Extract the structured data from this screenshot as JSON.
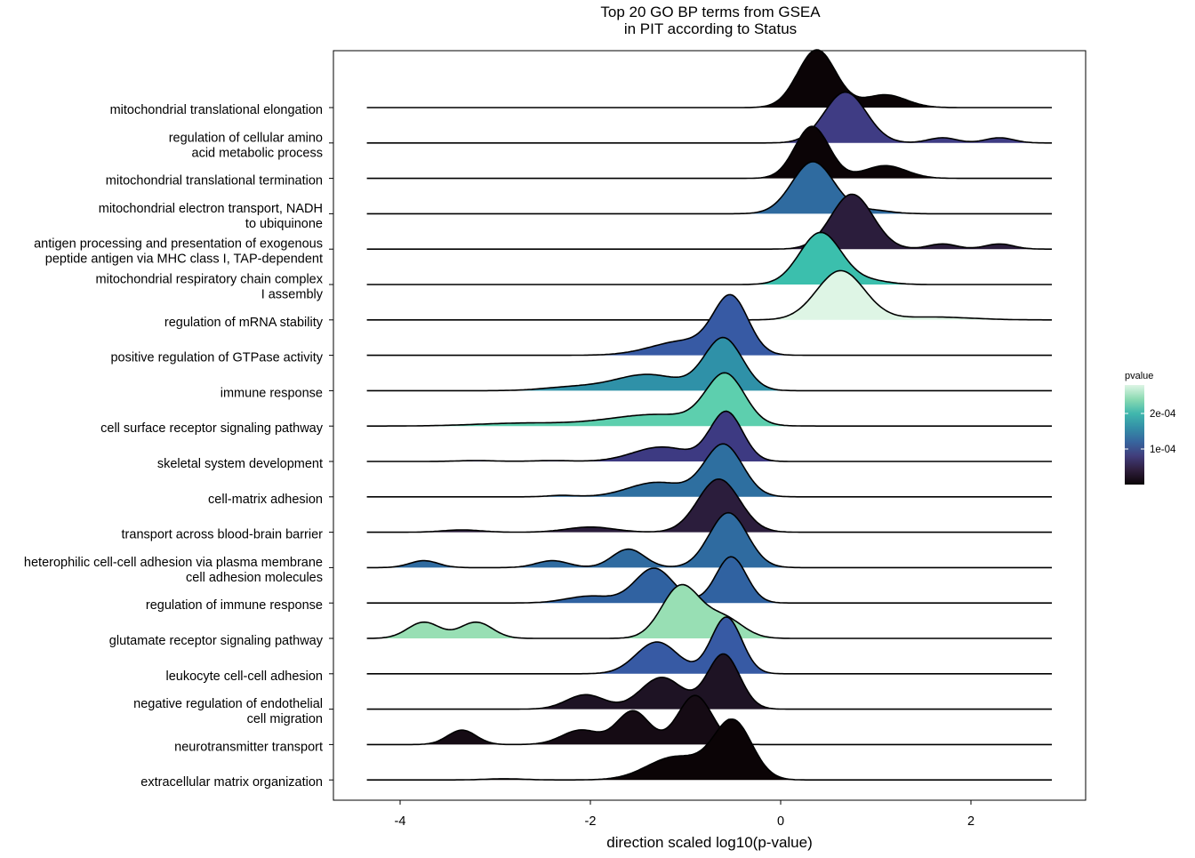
{
  "chart_data": {
    "type": "ridgeline",
    "title_line1": "Top 20 GO BP terms from GSEA",
    "title_line2": "in PIT according to Status",
    "xlabel": "direction scaled log10(p-value)",
    "ylabel": "",
    "xlim": [
      -4.6,
      3.4
    ],
    "x_ticks": [
      {
        "value": -4,
        "label": "-4"
      },
      {
        "value": -2,
        "label": "-2"
      },
      {
        "value": 0,
        "label": "0"
      },
      {
        "value": 2,
        "label": "2"
      }
    ],
    "grid": false,
    "legend": {
      "title": "pvalue",
      "position": "right",
      "range": [
        0,
        0.00028
      ],
      "ticks": [
        {
          "value": 0.0001,
          "label": "1e-04"
        },
        {
          "value": 0.0002,
          "label": "2e-04"
        }
      ],
      "colormap": [
        "#0b0406",
        "#2e1e3c",
        "#413d7b",
        "#37659e",
        "#348fa7",
        "#40b7ad",
        "#8bdab2",
        "#def5e5"
      ]
    },
    "series": [
      {
        "label": "mitochondrial translational elongation",
        "pvalue": 5e-06,
        "fill": "#0b0406",
        "x_range": [
          -4.35,
          2.85
        ],
        "peaks": [
          [
            0.38,
            1.0,
            0.2
          ],
          [
            1.1,
            0.22,
            0.22
          ]
        ]
      },
      {
        "label": "regulation of cellular amino acid metabolic process",
        "pvalue": 0.000105,
        "fill": "#3f3c84",
        "x_range": [
          -4.35,
          2.85
        ],
        "peaks": [
          [
            0.68,
            0.88,
            0.22
          ],
          [
            1.7,
            0.09,
            0.15
          ],
          [
            2.3,
            0.09,
            0.15
          ]
        ]
      },
      {
        "label": "mitochondrial translational termination",
        "pvalue": 5e-06,
        "fill": "#0b0406",
        "x_range": [
          -4.35,
          2.85
        ],
        "peaks": [
          [
            0.33,
            0.9,
            0.18
          ],
          [
            1.1,
            0.22,
            0.22
          ]
        ]
      },
      {
        "label": "mitochondrial electron transport, NADH to ubiquinone",
        "pvalue": 0.000135,
        "fill": "#2f6ba0",
        "x_range": [
          -4.35,
          2.85
        ],
        "peaks": [
          [
            0.34,
            0.9,
            0.22
          ],
          [
            0.95,
            0.06,
            0.2
          ]
        ]
      },
      {
        "label": "antigen processing and presentation of exogenous peptide antigen via MHC class I, TAP-dependent",
        "pvalue": 4.5e-05,
        "fill": "#2b1d3c",
        "x_range": [
          -4.35,
          2.85
        ],
        "peaks": [
          [
            0.75,
            0.95,
            0.22
          ],
          [
            1.7,
            0.09,
            0.15
          ],
          [
            2.3,
            0.09,
            0.15
          ]
        ]
      },
      {
        "label": "mitochondrial respiratory chain complex I assembly",
        "pvalue": 0.00023,
        "fill": "#3bbfad",
        "x_range": [
          -4.35,
          2.85
        ],
        "peaks": [
          [
            0.42,
            0.9,
            0.22
          ],
          [
            0.95,
            0.06,
            0.2
          ]
        ]
      },
      {
        "label": "regulation of mRNA stability",
        "pvalue": 0.00028,
        "fill": "#def5e5",
        "x_range": [
          -4.35,
          2.85
        ],
        "peaks": [
          [
            0.63,
            0.85,
            0.25
          ],
          [
            1.6,
            0.05,
            0.4
          ]
        ]
      },
      {
        "label": "positive regulation of GTPase activity",
        "pvalue": 0.000115,
        "fill": "#375aa4",
        "x_range": [
          -4.35,
          2.85
        ],
        "peaks": [
          [
            -0.52,
            0.95,
            0.18
          ],
          [
            -1.0,
            0.25,
            0.35
          ]
        ]
      },
      {
        "label": "immune response",
        "pvalue": 0.00018,
        "fill": "#2f91a8",
        "x_range": [
          -4.35,
          2.85
        ],
        "peaks": [
          [
            -0.6,
            0.9,
            0.2
          ],
          [
            -1.4,
            0.28,
            0.35
          ],
          [
            -2.2,
            0.06,
            0.3
          ]
        ]
      },
      {
        "label": "cell surface receptor signaling pathway",
        "pvalue": 0.00024,
        "fill": "#5dcfae",
        "x_range": [
          -4.35,
          2.85
        ],
        "peaks": [
          [
            -0.58,
            0.85,
            0.2
          ],
          [
            -1.3,
            0.2,
            0.5
          ],
          [
            -2.7,
            0.05,
            0.5
          ]
        ]
      },
      {
        "label": "skeletal system development",
        "pvalue": 0.0001,
        "fill": "#3d3a82",
        "x_range": [
          -4.35,
          2.85
        ],
        "peaks": [
          [
            -0.57,
            0.85,
            0.17
          ],
          [
            -1.25,
            0.25,
            0.3
          ],
          [
            -2.4,
            0.015,
            0.2
          ],
          [
            -3.2,
            0.015,
            0.2
          ]
        ]
      },
      {
        "label": "cell-matrix adhesion",
        "pvalue": 0.00015,
        "fill": "#2e6fa0",
        "x_range": [
          -4.35,
          2.85
        ],
        "peaks": [
          [
            -0.6,
            0.9,
            0.2
          ],
          [
            -1.3,
            0.25,
            0.3
          ],
          [
            -2.3,
            0.025,
            0.15
          ]
        ]
      },
      {
        "label": "transport across blood-brain barrier",
        "pvalue": 4.5e-05,
        "fill": "#2b1d3c",
        "x_range": [
          -4.35,
          2.85
        ],
        "peaks": [
          [
            -0.65,
            0.92,
            0.22
          ],
          [
            -2.0,
            0.09,
            0.25
          ],
          [
            -3.35,
            0.04,
            0.2
          ]
        ]
      },
      {
        "label": "heterophilic cell-cell adhesion via plasma membrane cell adhesion molecules",
        "pvalue": 0.00014,
        "fill": "#2f6ba0",
        "x_range": [
          -4.35,
          2.85
        ],
        "peaks": [
          [
            -0.55,
            0.95,
            0.2
          ],
          [
            -1.6,
            0.32,
            0.17
          ],
          [
            -2.4,
            0.12,
            0.17
          ],
          [
            -3.75,
            0.12,
            0.15
          ]
        ]
      },
      {
        "label": "regulation of immune response",
        "pvalue": 0.000125,
        "fill": "#3062a1",
        "x_range": [
          -4.35,
          2.85
        ],
        "peaks": [
          [
            -0.52,
            0.8,
            0.16
          ],
          [
            -1.33,
            0.6,
            0.2
          ],
          [
            -2.0,
            0.12,
            0.25
          ]
        ]
      },
      {
        "label": "glutamate receptor signaling pathway",
        "pvalue": 0.000255,
        "fill": "#98dfb4",
        "x_range": [
          -4.35,
          2.85
        ],
        "peaks": [
          [
            -1.05,
            0.9,
            0.2
          ],
          [
            -0.6,
            0.35,
            0.2
          ],
          [
            -3.75,
            0.28,
            0.17
          ],
          [
            -3.2,
            0.28,
            0.17
          ]
        ]
      },
      {
        "label": "leukocyte cell-cell adhesion",
        "pvalue": 0.00012,
        "fill": "#375aa4",
        "x_range": [
          -4.35,
          2.85
        ],
        "peaks": [
          [
            -0.57,
            0.98,
            0.16
          ],
          [
            -1.3,
            0.55,
            0.22
          ]
        ]
      },
      {
        "label": "negative regulation of endothelial cell migration",
        "pvalue": 2e-05,
        "fill": "#1e1324",
        "x_range": [
          -4.35,
          2.85
        ],
        "peaks": [
          [
            -0.6,
            0.95,
            0.17
          ],
          [
            -1.25,
            0.55,
            0.22
          ],
          [
            -2.05,
            0.25,
            0.2
          ]
        ]
      },
      {
        "label": "neurotransmitter transport",
        "pvalue": 1e-05,
        "fill": "#150b14",
        "x_range": [
          -4.35,
          2.85
        ],
        "peaks": [
          [
            -0.9,
            0.85,
            0.18
          ],
          [
            -1.55,
            0.58,
            0.17
          ],
          [
            -2.1,
            0.25,
            0.2
          ],
          [
            -3.35,
            0.25,
            0.15
          ]
        ]
      },
      {
        "label": "extracellular matrix organization",
        "pvalue": 2e-06,
        "fill": "#0b0406",
        "x_range": [
          -4.35,
          2.85
        ],
        "peaks": [
          [
            -0.5,
            1.0,
            0.2
          ],
          [
            -1.1,
            0.4,
            0.3
          ],
          [
            -2.9,
            0.02,
            0.2
          ]
        ]
      }
    ],
    "row_label_lines": [
      [
        "mitochondrial translational elongation"
      ],
      [
        "regulation of cellular amino",
        "acid metabolic process"
      ],
      [
        "mitochondrial translational termination"
      ],
      [
        "mitochondrial electron transport, NADH",
        "to ubiquinone"
      ],
      [
        "antigen processing and presentation of exogenous",
        "peptide antigen via MHC class I, TAP-dependent"
      ],
      [
        "mitochondrial respiratory chain complex",
        "I assembly"
      ],
      [
        "regulation of mRNA stability"
      ],
      [
        "positive regulation of GTPase activity"
      ],
      [
        "immune response"
      ],
      [
        "cell surface receptor signaling pathway"
      ],
      [
        "skeletal system development"
      ],
      [
        "cell-matrix adhesion"
      ],
      [
        "transport across blood-brain barrier"
      ],
      [
        "heterophilic cell-cell adhesion via plasma membrane",
        "cell adhesion molecules"
      ],
      [
        "regulation of immune response"
      ],
      [
        "glutamate receptor signaling pathway"
      ],
      [
        "leukocyte cell-cell adhesion"
      ],
      [
        "negative regulation of endothelial",
        "cell migration"
      ],
      [
        "neurotransmitter transport"
      ],
      [
        "extracellular matrix organization"
      ]
    ]
  }
}
